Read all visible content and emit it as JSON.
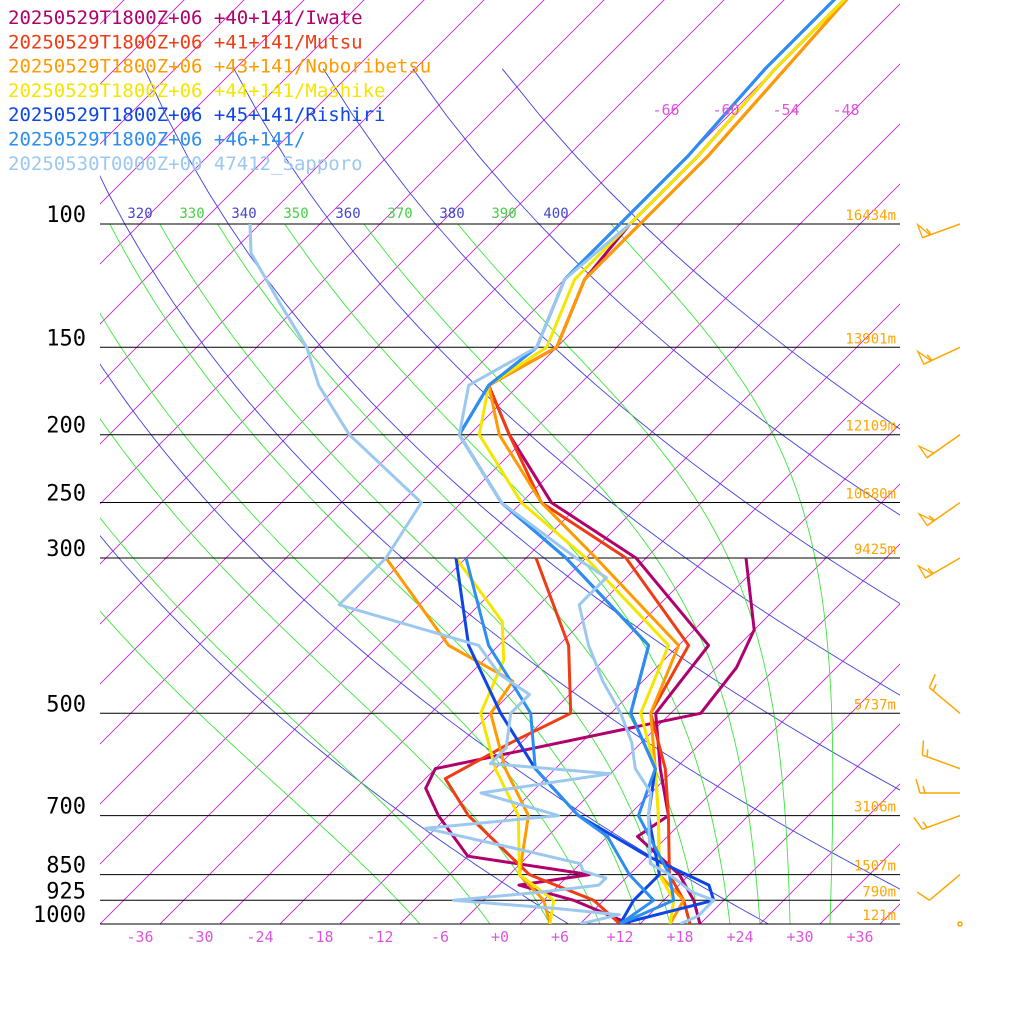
{
  "chart_data": {
    "type": "line",
    "subtype": "skew-T log-P sounding",
    "legend": [
      {
        "label": "20250529T1800Z+06 +40+141/Iwate",
        "color": "#b0006e"
      },
      {
        "label": "20250529T1800Z+06 +41+141/Mutsu",
        "color": "#f03c14"
      },
      {
        "label": "20250529T1800Z+06 +43+141/Noboribetsu",
        "color": "#ff9a00"
      },
      {
        "label": "20250529T1800Z+06 +44+141/Mashike",
        "color": "#f5e600"
      },
      {
        "label": "20250529T1800Z+06 +45+141/Rishiri",
        "color": "#0c46e6"
      },
      {
        "label": "20250529T1800Z+06 +46+141/",
        "color": "#2c8ef0"
      },
      {
        "label": "20250530T0000Z+00 47412_Sapporo",
        "color": "#9cc8f0"
      }
    ],
    "pressure_levels": [
      {
        "p": 100,
        "label": "100",
        "height": "16434m"
      },
      {
        "p": 150,
        "label": "150",
        "height": "13901m"
      },
      {
        "p": 200,
        "label": "200",
        "height": "12109m"
      },
      {
        "p": 250,
        "label": "250",
        "height": "10680m"
      },
      {
        "p": 300,
        "label": "300",
        "height": "9425m"
      },
      {
        "p": 500,
        "label": "500",
        "height": "5737m"
      },
      {
        "p": 700,
        "label": "700",
        "height": "3106m"
      },
      {
        "p": 850,
        "label": "850",
        "height": "1507m"
      },
      {
        "p": 925,
        "label": "925",
        "height": "790m"
      },
      {
        "p": 1000,
        "label": "1000",
        "height": "121m"
      }
    ],
    "x_ticks": [
      "-36",
      "-30",
      "-24",
      "-18",
      "-12",
      "-6",
      "+0",
      "+6",
      "+12",
      "+18",
      "+24",
      "+30",
      "+36"
    ],
    "xlim": [
      -40,
      40
    ],
    "ylim": [
      1000,
      100
    ],
    "y_scale": "log",
    "dry_adiabat_labels": [
      "320",
      "340",
      "360",
      "380",
      "400"
    ],
    "moist_adiabat_labels": [
      "330",
      "350",
      "370",
      "390"
    ],
    "upper_isotherm_labels": [
      "-66",
      "-60",
      "-54",
      "-48"
    ],
    "series": [
      {
        "name": "20250529T1800Z+06 +40+141/Iwate",
        "color": "#b0006e",
        "temperature": [
          [
            1000,
            20
          ],
          [
            925,
            17
          ],
          [
            850,
            13
          ],
          [
            750,
            5
          ],
          [
            700,
            6
          ],
          [
            600,
            0.5
          ],
          [
            500,
            -5.5
          ],
          [
            400,
            -7
          ],
          [
            300,
            -23
          ],
          [
            250,
            -37
          ],
          [
            200,
            -48
          ],
          [
            170,
            -55
          ],
          [
            150,
            -52
          ],
          [
            120,
            -56
          ],
          [
            100,
            -57
          ],
          [
            80,
            -57
          ],
          [
            60,
            -58
          ],
          [
            45,
            -58
          ]
        ],
        "dewpoint": [
          [
            1000,
            13
          ],
          [
            925,
            5
          ],
          [
            880,
            -2
          ],
          [
            850,
            4
          ],
          [
            800,
            -10
          ],
          [
            700,
            -17
          ],
          [
            640,
            -21
          ],
          [
            600,
            -22
          ],
          [
            500,
            -1
          ],
          [
            430,
            -2
          ],
          [
            380,
            -4
          ],
          [
            300,
            -12
          ]
        ]
      },
      {
        "name": "20250529T1800Z+06 +41+141/Mutsu",
        "color": "#f03c14",
        "temperature": [
          [
            1000,
            19
          ],
          [
            925,
            16
          ],
          [
            850,
            12
          ],
          [
            700,
            6
          ],
          [
            600,
            1
          ],
          [
            500,
            -6
          ],
          [
            400,
            -9
          ],
          [
            300,
            -24
          ],
          [
            250,
            -38
          ],
          [
            200,
            -48
          ],
          [
            170,
            -55
          ],
          [
            150,
            -52
          ],
          [
            120,
            -56
          ],
          [
            100,
            -56
          ],
          [
            80,
            -56
          ],
          [
            60,
            -57
          ],
          [
            45,
            -58
          ]
        ],
        "dewpoint": [
          [
            1000,
            12
          ],
          [
            925,
            7
          ],
          [
            850,
            -2
          ],
          [
            700,
            -14
          ],
          [
            620,
            -20
          ],
          [
            550,
            -17
          ],
          [
            500,
            -14
          ],
          [
            400,
            -21
          ],
          [
            300,
            -33
          ]
        ]
      },
      {
        "name": "20250529T1800Z+06 +43+141/Noboribetsu",
        "color": "#ff9a00",
        "temperature": [
          [
            1000,
            17
          ],
          [
            925,
            16
          ],
          [
            850,
            11
          ],
          [
            700,
            5
          ],
          [
            600,
            0
          ],
          [
            500,
            -6
          ],
          [
            400,
            -10
          ],
          [
            300,
            -27
          ],
          [
            250,
            -38
          ],
          [
            200,
            -49
          ],
          [
            170,
            -55
          ],
          [
            150,
            -52
          ],
          [
            120,
            -56
          ],
          [
            100,
            -56
          ],
          [
            80,
            -56
          ],
          [
            60,
            -57
          ],
          [
            45,
            -58
          ]
        ],
        "dewpoint": [
          [
            1000,
            5
          ],
          [
            925,
            2
          ],
          [
            850,
            -3
          ],
          [
            700,
            -8
          ],
          [
            600,
            -15
          ],
          [
            500,
            -22
          ],
          [
            450,
            -23
          ],
          [
            400,
            -33
          ],
          [
            300,
            -48
          ]
        ]
      },
      {
        "name": "20250529T1800Z+06 +44+141/Mashike",
        "color": "#f5e600",
        "temperature": [
          [
            1000,
            17
          ],
          [
            925,
            15
          ],
          [
            850,
            11
          ],
          [
            700,
            5
          ],
          [
            600,
            0
          ],
          [
            500,
            -7
          ],
          [
            400,
            -11
          ],
          [
            300,
            -28
          ],
          [
            250,
            -40
          ],
          [
            200,
            -51
          ],
          [
            170,
            -55
          ],
          [
            150,
            -53
          ],
          [
            120,
            -57
          ],
          [
            100,
            -57
          ],
          [
            80,
            -57
          ],
          [
            60,
            -58
          ],
          [
            45,
            -58
          ]
        ],
        "dewpoint": [
          [
            1000,
            5
          ],
          [
            925,
            3
          ],
          [
            850,
            -3
          ],
          [
            700,
            -9
          ],
          [
            600,
            -16
          ],
          [
            500,
            -23
          ],
          [
            420,
            -26
          ],
          [
            370,
            -30
          ],
          [
            300,
            -41
          ]
        ]
      },
      {
        "name": "20250529T1800Z+06 +45+141/Rishiri",
        "color": "#0c46e6",
        "temperature": [
          [
            1000,
            12
          ],
          [
            925,
            11
          ],
          [
            850,
            11
          ],
          [
            700,
            4
          ],
          [
            600,
            0
          ],
          [
            500,
            -8
          ],
          [
            400,
            -13
          ],
          [
            300,
            -30
          ],
          [
            250,
            -42
          ],
          [
            200,
            -53
          ],
          [
            170,
            -55
          ],
          [
            150,
            -54
          ],
          [
            120,
            -58
          ],
          [
            100,
            -58
          ],
          [
            80,
            -58
          ],
          [
            60,
            -59
          ],
          [
            45,
            -59
          ]
        ],
        "dewpoint": [
          [
            1000,
            12
          ],
          [
            925,
            19
          ],
          [
            880,
            17
          ],
          [
            800,
            8
          ],
          [
            700,
            -3
          ],
          [
            600,
            -12
          ],
          [
            500,
            -21
          ],
          [
            400,
            -31
          ],
          [
            300,
            -41
          ]
        ]
      },
      {
        "name": "20250529T1800Z+06 +46+141/",
        "color": "#2c8ef0",
        "temperature": [
          [
            1000,
            12
          ],
          [
            925,
            15
          ],
          [
            850,
            12
          ],
          [
            700,
            3
          ],
          [
            600,
            0
          ],
          [
            500,
            -8
          ],
          [
            400,
            -13
          ],
          [
            300,
            -30
          ],
          [
            250,
            -42
          ],
          [
            200,
            -53
          ],
          [
            170,
            -55
          ],
          [
            150,
            -54
          ],
          [
            120,
            -58
          ],
          [
            100,
            -58
          ],
          [
            80,
            -58
          ],
          [
            60,
            -59
          ],
          [
            45,
            -59
          ]
        ],
        "dewpoint": [
          [
            1000,
            12
          ],
          [
            925,
            13
          ],
          [
            850,
            8
          ],
          [
            750,
            2
          ],
          [
            700,
            -3
          ],
          [
            600,
            -12
          ],
          [
            500,
            -18
          ],
          [
            400,
            -29
          ],
          [
            300,
            -40
          ]
        ]
      },
      {
        "name": "20250530T0000Z+00 47412_Sapporo",
        "color": "#9cc8f0",
        "temperature": [
          [
            1000,
            18
          ],
          [
            975,
            19
          ],
          [
            925,
            19
          ],
          [
            900,
            16
          ],
          [
            850,
            12
          ],
          [
            820,
            9
          ],
          [
            700,
            4
          ],
          [
            650,
            2
          ],
          [
            600,
            -2
          ],
          [
            550,
            -5
          ],
          [
            500,
            -9
          ],
          [
            450,
            -14
          ],
          [
            400,
            -19
          ],
          [
            350,
            -24
          ],
          [
            320,
            -24
          ],
          [
            300,
            -29
          ],
          [
            250,
            -42
          ],
          [
            200,
            -53
          ],
          [
            170,
            -57
          ],
          [
            150,
            -54
          ],
          [
            120,
            -58
          ],
          [
            100,
            -57
          ]
        ],
        "dewpoint": [
          [
            1000,
            8
          ],
          [
            970,
            11
          ],
          [
            950,
            4
          ],
          [
            925,
            -7
          ],
          [
            900,
            1
          ],
          [
            880,
            6
          ],
          [
            860,
            6
          ],
          [
            840,
            3
          ],
          [
            820,
            2
          ],
          [
            780,
            -6
          ],
          [
            730,
            -17
          ],
          [
            700,
            -5
          ],
          [
            650,
            -15
          ],
          [
            610,
            -4
          ],
          [
            590,
            -17
          ],
          [
            560,
            -17
          ],
          [
            500,
            -20
          ],
          [
            470,
            -20
          ],
          [
            440,
            -25
          ],
          [
            400,
            -30
          ],
          [
            350,
            -48
          ],
          [
            300,
            -48
          ],
          [
            250,
            -50
          ],
          [
            200,
            -64
          ],
          [
            170,
            -72
          ],
          [
            150,
            -77
          ],
          [
            130,
            -84
          ],
          [
            110,
            -92
          ],
          [
            100,
            -95
          ]
        ]
      }
    ],
    "wind_barbs": [
      {
        "p": 100,
        "speed_kt": 55,
        "dir_deg": 250
      },
      {
        "p": 150,
        "speed_kt": 55,
        "dir_deg": 245
      },
      {
        "p": 200,
        "speed_kt": 50,
        "dir_deg": 235
      },
      {
        "p": 250,
        "speed_kt": 55,
        "dir_deg": 235
      },
      {
        "p": 300,
        "speed_kt": 55,
        "dir_deg": 240
      },
      {
        "p": 500,
        "speed_kt": 15,
        "dir_deg": 310
      },
      {
        "p": 600,
        "speed_kt": 15,
        "dir_deg": 290
      },
      {
        "p": 650,
        "speed_kt": 15,
        "dir_deg": 270
      },
      {
        "p": 700,
        "speed_kt": 15,
        "dir_deg": 250
      },
      {
        "p": 850,
        "speed_kt": 10,
        "dir_deg": 230
      },
      {
        "p": 1000,
        "speed_kt": 0,
        "dir_deg": 0
      }
    ]
  },
  "colors": {
    "isotherm": "#cc22cc",
    "dry_adiabat": "#4040dd",
    "moist_adiabat": "#3ce63c",
    "isobar": "#000000",
    "tick_text": "#dd55dd",
    "dry_label": "#4444cc",
    "moist_label": "#44d044",
    "height_text": "#ffa500",
    "barb": "#ffa500"
  }
}
